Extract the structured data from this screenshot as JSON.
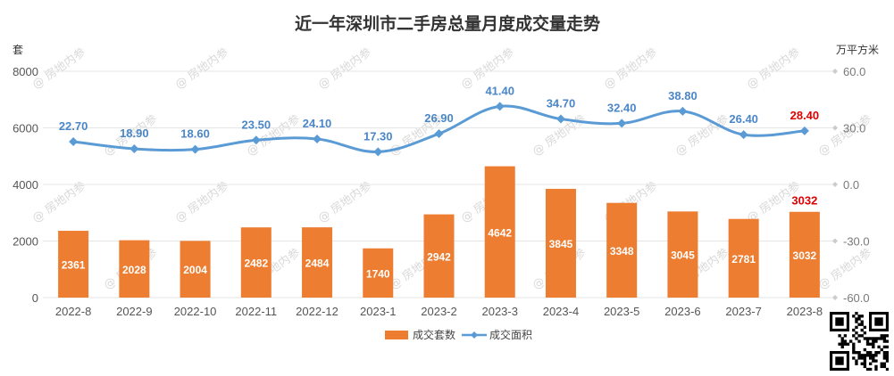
{
  "chart_data": {
    "type": "bar+line",
    "title": "近一年深圳市二手房总量月度成交量走势",
    "left_unit": "套",
    "right_unit": "万平方米",
    "categories": [
      "2022-8",
      "2022-9",
      "2022-10",
      "2022-11",
      "2022-12",
      "2023-1",
      "2023-2",
      "2023-3",
      "2023-4",
      "2023-5",
      "2023-6",
      "2023-7",
      "2023-8"
    ],
    "series": [
      {
        "name": "成交套数",
        "type": "bar",
        "axis": "left",
        "values": [
          2361,
          2028,
          2004,
          2482,
          2484,
          1740,
          2942,
          4642,
          3845,
          3348,
          3045,
          2781,
          3032
        ]
      },
      {
        "name": "成交面积",
        "type": "line",
        "axis": "right",
        "values": [
          22.7,
          18.9,
          18.6,
          23.5,
          24.1,
          17.3,
          26.9,
          41.4,
          34.7,
          32.4,
          38.8,
          26.4,
          28.4
        ]
      }
    ],
    "y_left": {
      "min": 0,
      "max": 8000,
      "ticks": [
        "0",
        "2000",
        "4000",
        "6000",
        "8000"
      ]
    },
    "y_right": {
      "min": -60,
      "max": 60,
      "ticks": [
        "-60.0",
        "-30.0",
        "0.0",
        "30.0",
        "60.0"
      ]
    },
    "grid": true,
    "legend_position": "bottom",
    "highlight_last": true,
    "watermark": "@ 房地内参",
    "colors": {
      "bar": "#ED7D31",
      "line": "#5B9BD5",
      "line_label": "#4A86C8",
      "highlight": "#E00000",
      "grid": "#E6E6E6"
    }
  }
}
